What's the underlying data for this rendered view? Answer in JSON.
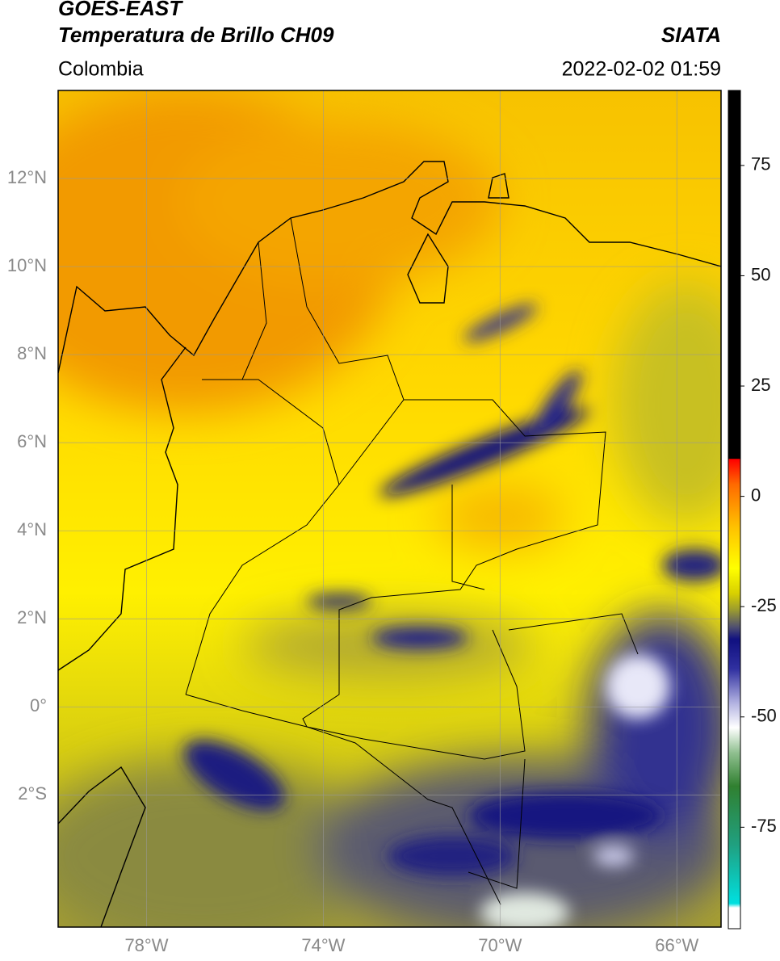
{
  "header": {
    "title": "GOES-EAST",
    "subtitle": "Temperatura de Brillo CH09",
    "region": "Colombia",
    "source": "SIATA",
    "datetime": "2022-02-02 01:59"
  },
  "map": {
    "lonlim": [
      -80,
      -65
    ],
    "latlim": [
      -5,
      14
    ],
    "lonticks": [
      {
        "value": -78,
        "label": "78°W"
      },
      {
        "value": -74,
        "label": "74°W"
      },
      {
        "value": -70,
        "label": "70°W"
      },
      {
        "value": -66,
        "label": "66°W"
      }
    ],
    "latticks": [
      {
        "value": 12,
        "label": "12°N"
      },
      {
        "value": 10,
        "label": "10°N"
      },
      {
        "value": 8,
        "label": "8°N"
      },
      {
        "value": 6,
        "label": "6°N"
      },
      {
        "value": 4,
        "label": "4°N"
      },
      {
        "value": 2,
        "label": "2°N"
      },
      {
        "value": 0,
        "label": "0°"
      },
      {
        "value": -2,
        "label": "2°S"
      }
    ],
    "grid": true
  },
  "colorbar": {
    "lim": [
      -98,
      92
    ],
    "ticks": [
      75,
      50,
      25,
      0,
      -25,
      -50,
      -75
    ]
  }
}
